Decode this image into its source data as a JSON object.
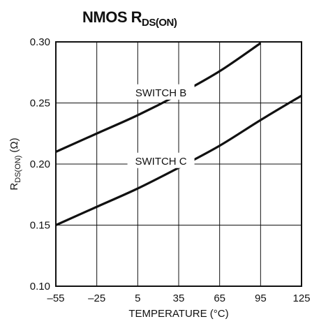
{
  "chart_data": {
    "type": "line",
    "title": "NMOS R",
    "title_subscript": "DS(ON)",
    "xlabel": "TEMPERATURE (°C)",
    "ylabel_main": "R",
    "ylabel_sub": "DS(ON)",
    "ylabel_unit": "(Ω)",
    "xlim": [
      -55,
      125
    ],
    "ylim": [
      0.1,
      0.3
    ],
    "x_ticks": [
      -55,
      -25,
      5,
      35,
      65,
      95,
      125
    ],
    "x_tick_labels": [
      "–55",
      "–25",
      "5",
      "35",
      "65",
      "95",
      "125"
    ],
    "y_ticks": [
      0.1,
      0.15,
      0.2,
      0.25,
      0.3
    ],
    "y_tick_labels": [
      "0.10",
      "0.15",
      "0.20",
      "0.25",
      "0.30"
    ],
    "grid": true,
    "series": [
      {
        "name": "SWITCH B",
        "x": [
          -55,
          -25,
          5,
          35,
          65,
          95
        ],
        "y": [
          0.21,
          0.225,
          0.24,
          0.257,
          0.276,
          0.299
        ]
      },
      {
        "name": "SWITCH C",
        "x": [
          -55,
          -25,
          5,
          35,
          65,
          95,
          125
        ],
        "y": [
          0.15,
          0.165,
          0.18,
          0.197,
          0.215,
          0.236,
          0.256
        ]
      }
    ],
    "annotations": [
      {
        "text": "SWITCH B",
        "x": 22,
        "y": 0.259
      },
      {
        "text": "SWITCH C",
        "x": 22,
        "y": 0.203
      }
    ]
  }
}
